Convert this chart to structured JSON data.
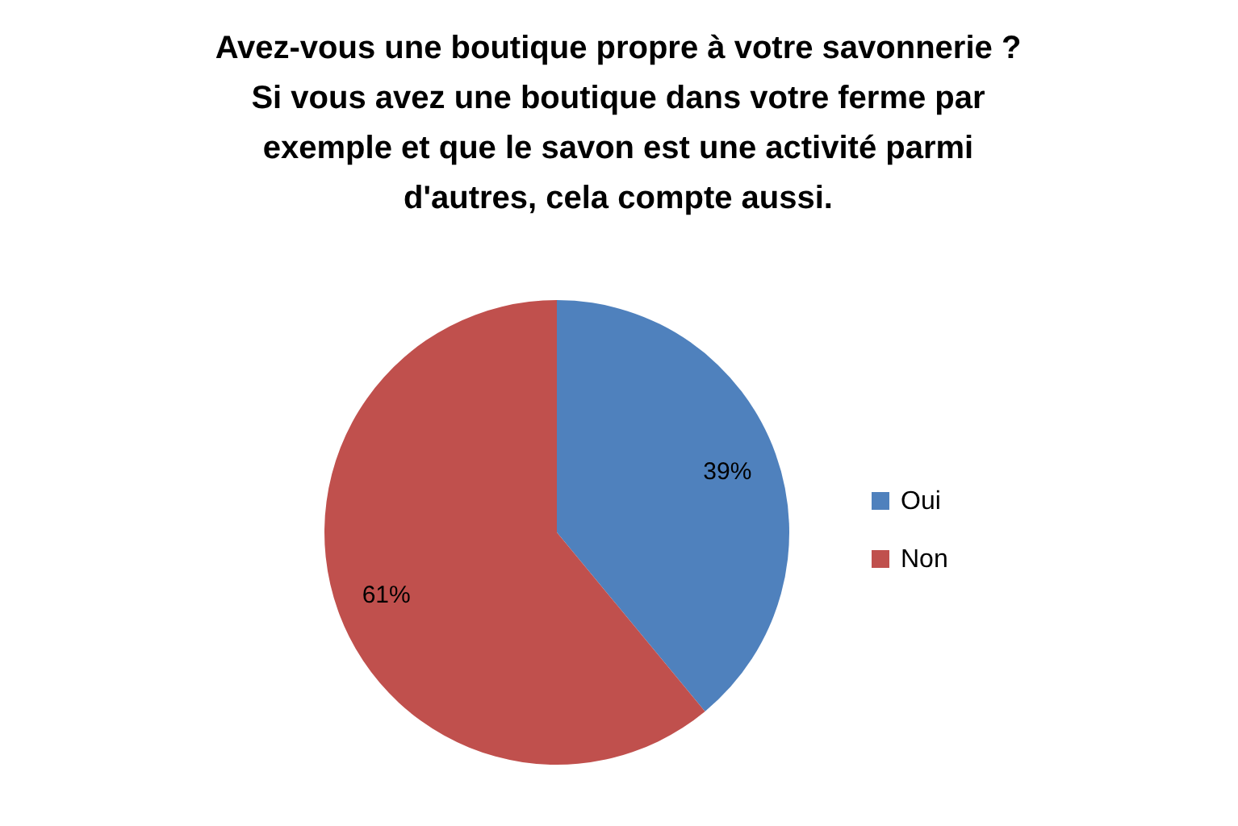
{
  "chart_data": {
    "type": "pie",
    "title": "Avez-vous une boutique propre à votre savonnerie ?\nSi vous avez une boutique dans votre ferme par\nexemple et que le savon est une activité parmi\nd'autres, cela compte aussi.",
    "categories": [
      "Oui",
      "Non"
    ],
    "values": [
      39,
      61
    ],
    "colors": [
      "#4f81bd",
      "#c0504d"
    ],
    "value_labels": [
      "39%",
      "61%"
    ],
    "legend": "right"
  }
}
